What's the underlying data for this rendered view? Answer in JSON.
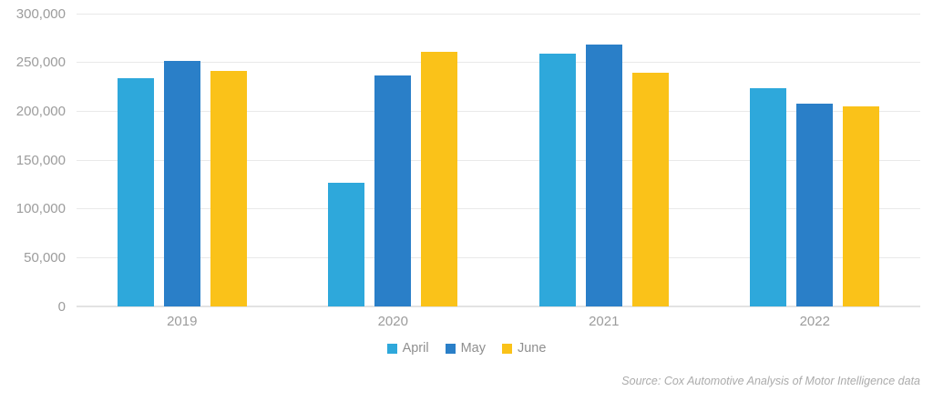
{
  "chart": {
    "source_note": "Source: Cox Automotive Analysis of Motor Intelligence data"
  },
  "chart_data": {
    "type": "bar",
    "title": "",
    "xlabel": "",
    "ylabel": "",
    "categories": [
      "2019",
      "2020",
      "2021",
      "2022"
    ],
    "series": [
      {
        "name": "April",
        "color": "#2ea8db",
        "values": [
          234000,
          127000,
          259000,
          224000
        ]
      },
      {
        "name": "May",
        "color": "#2a7fc8",
        "values": [
          252000,
          237000,
          268000,
          208000
        ]
      },
      {
        "name": "June",
        "color": "#fac219",
        "values": [
          241000,
          261000,
          239000,
          205000
        ]
      }
    ],
    "ylim": [
      0,
      300000
    ],
    "ytick_interval": 50000,
    "ytick_labels": [
      "0",
      "50,000",
      "100,000",
      "150,000",
      "200,000",
      "250,000",
      "300,000"
    ],
    "grid": true,
    "legend_position": "bottom"
  }
}
